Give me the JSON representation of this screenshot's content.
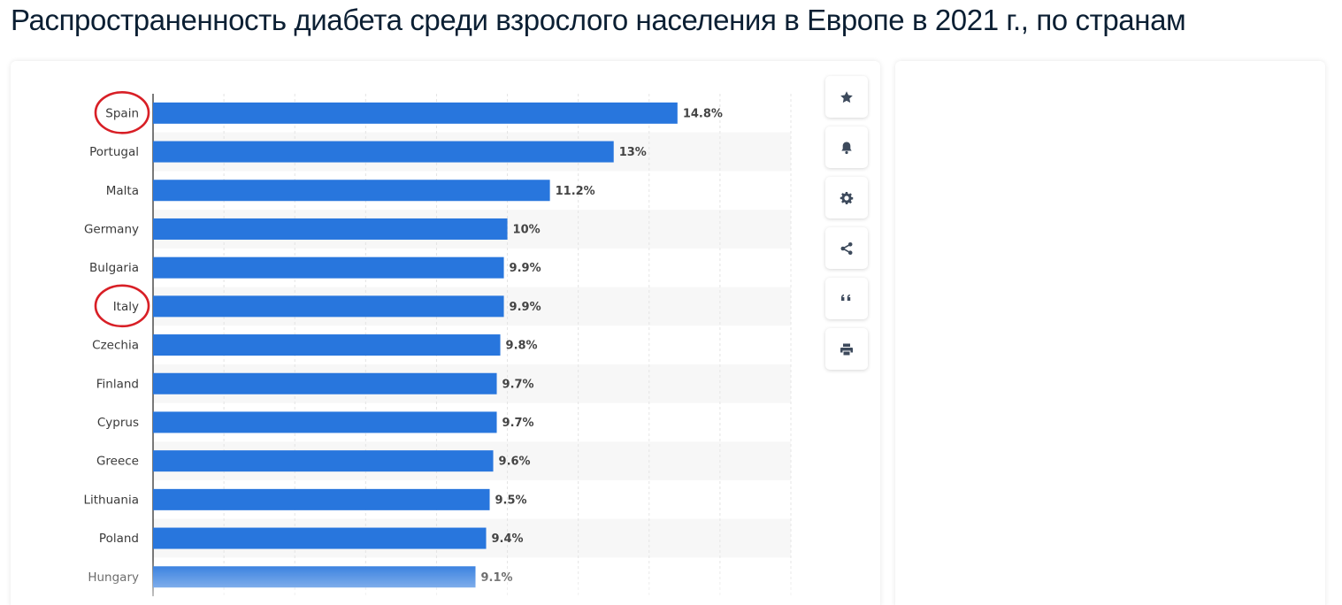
{
  "page": {
    "title": "Распространенность диабета среди взрослого населения в Европе в 2021 г., по странам"
  },
  "toolbar": {
    "icons": [
      "star-icon",
      "bell-icon",
      "gear-icon",
      "share-icon",
      "quote-icon",
      "print-icon"
    ]
  },
  "colors": {
    "bar": "#2876dd",
    "stripe": "#f7f7f7",
    "highlight_circle": "#d81f26",
    "label": "#3a3a3a"
  },
  "chart_data": {
    "type": "bar",
    "orientation": "horizontal",
    "categories": [
      "Spain",
      "Portugal",
      "Malta",
      "Germany",
      "Bulgaria",
      "Italy",
      "Czechia",
      "Finland",
      "Cyprus",
      "Greece",
      "Lithuania",
      "Poland",
      "Hungary"
    ],
    "values": [
      14.8,
      13,
      11.2,
      10,
      9.9,
      9.9,
      9.8,
      9.7,
      9.7,
      9.6,
      9.5,
      9.4,
      9.1
    ],
    "value_labels": [
      "14.8%",
      "13%",
      "11.2%",
      "10%",
      "9.9%",
      "9.9%",
      "9.8%",
      "9.7%",
      "9.7%",
      "9.6%",
      "9.5%",
      "9.4%",
      "9.1%"
    ],
    "xlim": [
      0,
      18
    ],
    "grid": true,
    "highlighted_categories": [
      "Spain",
      "Italy"
    ]
  }
}
